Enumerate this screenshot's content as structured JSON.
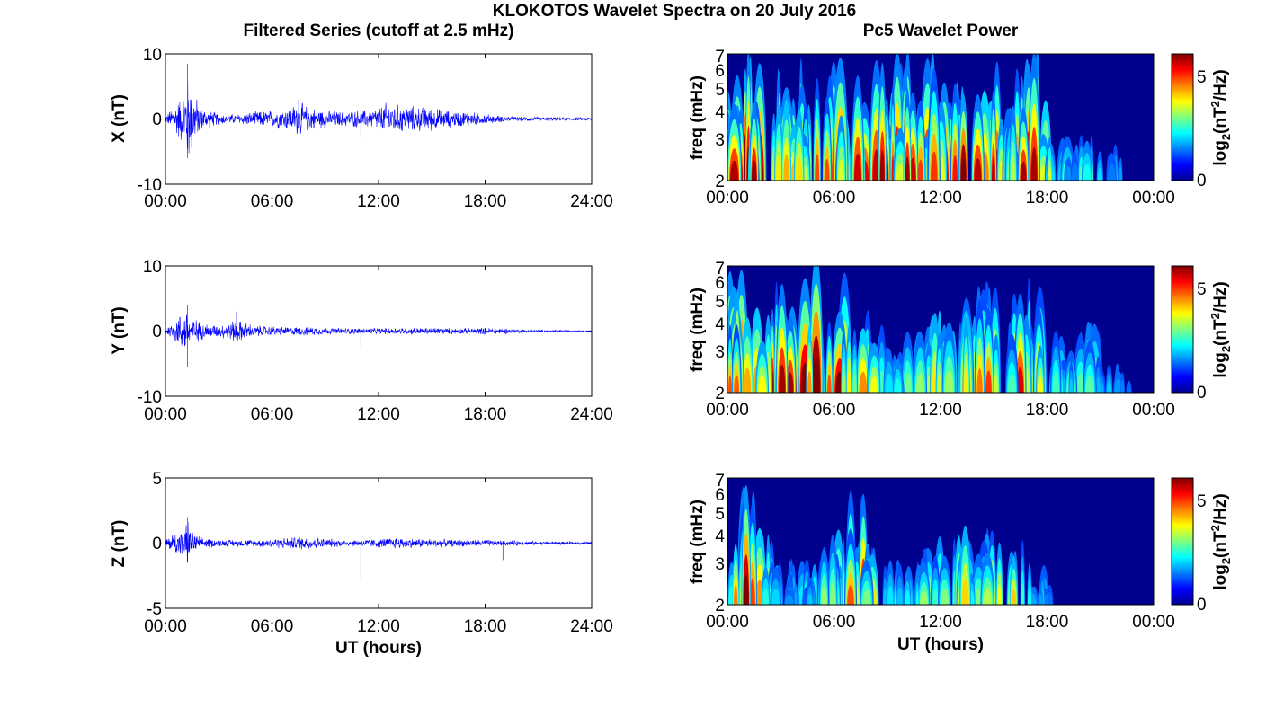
{
  "figure": {
    "title": "KLOKOTOS Wavelet Spectra on 20 July 2016",
    "left_title": "Filtered Series (cutoff at 2.5 mHz)",
    "right_title": "Pc5 Wavelet Power"
  },
  "colors": {
    "series_line": "#0000ff",
    "axes": "#000000",
    "colormap": "jet",
    "spectrogram_background": "#00008f"
  },
  "chart_data": [
    {
      "type": "line",
      "panel": "left-1",
      "ylabel": "X (nT)",
      "ylim": [
        -10,
        10
      ],
      "yticks": [
        "10",
        "0",
        "-10"
      ],
      "xlim_hours": [
        0,
        24
      ],
      "xticks": [
        "00:00",
        "06:00",
        "12:00",
        "18:00",
        "24:00"
      ],
      "xlabel": "",
      "series": [
        {
          "x_hours": [
            0.0,
            0.5,
            1.0,
            1.25,
            1.5,
            2.0,
            3.0,
            4.0,
            5.0,
            6.0,
            7.0,
            7.5,
            8.0,
            9.0,
            10.0,
            11.0,
            12.0,
            12.5,
            13.0,
            14.0,
            15.0,
            16.0,
            17.0,
            18.0,
            19.0,
            20.0,
            21.0,
            22.0,
            23.0,
            24.0
          ],
          "envelope_nT": [
            0.5,
            2.5,
            4.5,
            8.5,
            5.5,
            2.0,
            1.0,
            0.8,
            1.3,
            1.5,
            2.0,
            3.0,
            2.2,
            1.5,
            1.3,
            1.5,
            2.0,
            3.0,
            2.5,
            2.2,
            2.0,
            1.5,
            1.3,
            0.9,
            0.5,
            0.4,
            0.35,
            0.3,
            0.3,
            0.25
          ]
        }
      ],
      "spikes": [
        {
          "x_hours": 1.25,
          "y": 8.5
        },
        {
          "x_hours": 1.25,
          "y": -6
        },
        {
          "x_hours": 7.5,
          "y": 3
        },
        {
          "x_hours": 11.0,
          "y": -3
        }
      ]
    },
    {
      "type": "line",
      "panel": "left-2",
      "ylabel": "Y (nT)",
      "ylim": [
        -10,
        10
      ],
      "yticks": [
        "10",
        "0",
        "-10"
      ],
      "xlim_hours": [
        0,
        24
      ],
      "xticks": [
        "00:00",
        "06:00",
        "12:00",
        "18:00",
        "24:00"
      ],
      "xlabel": "",
      "series": [
        {
          "x_hours": [
            0.0,
            0.5,
            1.0,
            1.25,
            1.5,
            2.0,
            3.0,
            4.0,
            5.0,
            6.0,
            7.0,
            8.0,
            9.0,
            10.0,
            11.0,
            12.0,
            13.0,
            14.0,
            15.0,
            16.0,
            17.0,
            18.0,
            19.0,
            20.0,
            21.0,
            22.0,
            23.0,
            24.0
          ],
          "envelope_nT": [
            0.5,
            2.0,
            3.5,
            4.0,
            2.5,
            1.5,
            1.0,
            2.0,
            1.0,
            0.8,
            0.7,
            0.8,
            0.6,
            0.5,
            0.5,
            0.5,
            0.6,
            0.6,
            0.6,
            0.5,
            0.5,
            0.6,
            0.5,
            0.3,
            0.2,
            0.2,
            0.15,
            0.15
          ]
        }
      ],
      "spikes": [
        {
          "x_hours": 1.25,
          "y": 4
        },
        {
          "x_hours": 1.25,
          "y": -5.5
        },
        {
          "x_hours": 4.0,
          "y": 3
        },
        {
          "x_hours": 11.0,
          "y": -2.5
        }
      ]
    },
    {
      "type": "line",
      "panel": "left-3",
      "ylabel": "Z (nT)",
      "ylim": [
        -5,
        5
      ],
      "yticks": [
        "5",
        "0",
        "-5"
      ],
      "xlim_hours": [
        0,
        24
      ],
      "xticks": [
        "00:00",
        "06:00",
        "12:00",
        "18:00",
        "24:00"
      ],
      "xlabel": "UT (hours)",
      "series": [
        {
          "x_hours": [
            0.0,
            0.5,
            1.0,
            1.25,
            1.5,
            2.0,
            3.0,
            4.0,
            5.0,
            6.0,
            7.0,
            8.0,
            9.0,
            10.0,
            11.0,
            12.0,
            13.0,
            14.0,
            15.0,
            16.0,
            17.0,
            18.0,
            19.0,
            20.0,
            21.0,
            22.0,
            23.0,
            24.0
          ],
          "envelope_nT": [
            0.3,
            1.0,
            1.3,
            2.0,
            1.0,
            0.5,
            0.3,
            0.3,
            0.3,
            0.4,
            0.5,
            0.6,
            0.4,
            0.3,
            0.3,
            0.4,
            0.5,
            0.4,
            0.4,
            0.3,
            0.3,
            0.3,
            0.25,
            0.2,
            0.15,
            0.15,
            0.12,
            0.12
          ]
        }
      ],
      "spikes": [
        {
          "x_hours": 1.25,
          "y": 2
        },
        {
          "x_hours": 1.25,
          "y": -1.5
        },
        {
          "x_hours": 11.0,
          "y": -2.9
        },
        {
          "x_hours": 19.0,
          "y": -1.3
        }
      ]
    },
    {
      "type": "heatmap",
      "panel": "right-1",
      "ylabel": "freq (mHz)",
      "ylim_mHz": [
        2,
        7
      ],
      "yscale": "log",
      "yticks": [
        "7",
        "6",
        "5",
        "4",
        "3",
        "2"
      ],
      "xticks": [
        "00:00",
        "06:00",
        "12:00",
        "18:00",
        "00:00"
      ],
      "xlabel": "",
      "colorbar": {
        "label": "log₂(nT²/Hz)",
        "range": [
          0,
          6
        ],
        "ticks": [
          "5",
          "0"
        ]
      },
      "power_profile": {
        "x_hours": [
          0,
          1,
          2,
          3,
          4,
          5,
          6,
          7,
          8,
          9,
          10,
          11,
          12,
          13,
          14,
          15,
          16,
          17,
          17.8,
          18.5,
          19,
          20,
          21,
          22,
          23,
          24
        ],
        "level_log2": [
          5.5,
          6.0,
          6.0,
          5.5,
          5.0,
          4.5,
          5.0,
          5.5,
          5.5,
          5.0,
          5.0,
          5.5,
          5.5,
          6.0,
          6.0,
          5.5,
          5.0,
          5.5,
          5.0,
          1.5,
          2.5,
          2.5,
          2.0,
          1.5,
          1.0,
          0.5
        ]
      }
    },
    {
      "type": "heatmap",
      "panel": "right-2",
      "ylabel": "freq (mHz)",
      "ylim_mHz": [
        2,
        7
      ],
      "yscale": "log",
      "yticks": [
        "7",
        "6",
        "5",
        "4",
        "3",
        "2"
      ],
      "xticks": [
        "00:00",
        "06:00",
        "12:00",
        "18:00",
        "00:00"
      ],
      "xlabel": "",
      "colorbar": {
        "label": "log₂(nT²/Hz)",
        "range": [
          0,
          6
        ],
        "ticks": [
          "5",
          "0"
        ]
      },
      "power_profile": {
        "x_hours": [
          0,
          1,
          2,
          3,
          4,
          5,
          6,
          7,
          8,
          9,
          10,
          11,
          12,
          13,
          14,
          15,
          16,
          17,
          18,
          19,
          20,
          21,
          22,
          23,
          24
        ],
        "level_log2": [
          6.0,
          6.0,
          5.5,
          5.0,
          5.5,
          6.0,
          5.5,
          5.0,
          4.5,
          3.0,
          2.5,
          3.0,
          4.0,
          4.5,
          5.0,
          5.0,
          4.5,
          5.0,
          4.0,
          3.0,
          3.0,
          2.5,
          2.0,
          1.0,
          0.5
        ]
      }
    },
    {
      "type": "heatmap",
      "panel": "right-3",
      "ylabel": "freq (mHz)",
      "ylim_mHz": [
        2,
        7
      ],
      "yscale": "log",
      "yticks": [
        "7",
        "6",
        "5",
        "4",
        "3",
        "2"
      ],
      "xticks": [
        "00:00",
        "06:00",
        "12:00",
        "18:00",
        "00:00"
      ],
      "xlabel": "UT (hours)",
      "colorbar": {
        "label": "log₂(nT²/Hz)",
        "range": [
          0,
          6
        ],
        "ticks": [
          "5",
          "0"
        ]
      },
      "power_profile": {
        "x_hours": [
          0,
          1,
          2,
          3,
          4,
          5,
          6,
          7,
          7.5,
          8,
          9,
          10,
          11,
          12,
          12.5,
          13,
          14,
          15,
          16,
          17,
          18,
          19,
          20,
          21,
          22,
          23,
          24
        ],
        "level_log2": [
          2.0,
          6.0,
          3.5,
          2.0,
          2.0,
          2.5,
          3.0,
          4.5,
          5.5,
          3.5,
          2.5,
          2.0,
          2.5,
          4.0,
          5.0,
          4.0,
          3.5,
          4.5,
          3.5,
          3.0,
          1.5,
          0.5,
          0.5,
          0.5,
          1.0,
          0.3,
          0.2
        ]
      }
    }
  ]
}
